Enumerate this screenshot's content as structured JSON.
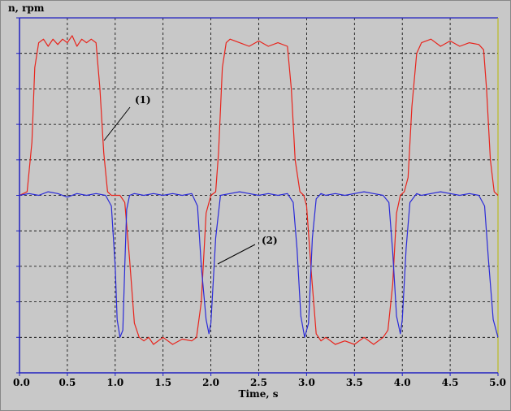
{
  "chart_data": {
    "type": "line",
    "xlabel": "Time, s",
    "ylabel": "n, rpm",
    "xlim": [
      0.0,
      5.0
    ],
    "ylim": [
      -5,
      5
    ],
    "x_ticks": [
      "0.0",
      "0.5",
      "1.0",
      "1.5",
      "2.0",
      "2.5",
      "3.0",
      "3.5",
      "4.0",
      "4.5",
      "5.0"
    ],
    "y_gridlines": 10,
    "grid": true,
    "colors": {
      "series_1": "#e8241c",
      "series_2": "#2a2ad8",
      "plot_bg": "#c8c8c8",
      "grid": "#000000",
      "axis": "#2020c0",
      "border": "#b8b800"
    },
    "annotations": [
      {
        "text": "(1)",
        "series": 0
      },
      {
        "text": "(2)",
        "series": 1
      }
    ],
    "series": [
      {
        "x": [
          0.0,
          0.08,
          0.13,
          0.16,
          0.2,
          0.25,
          0.3,
          0.35,
          0.4,
          0.45,
          0.5,
          0.55,
          0.6,
          0.65,
          0.7,
          0.75,
          0.8,
          0.84,
          0.88,
          0.92,
          0.96,
          1.0,
          1.05,
          1.1,
          1.15,
          1.2,
          1.25,
          1.3,
          1.35,
          1.4,
          1.5,
          1.6,
          1.7,
          1.8,
          1.85,
          1.9,
          1.95,
          2.0,
          2.05,
          2.08,
          2.12,
          2.16,
          2.2,
          2.3,
          2.4,
          2.5,
          2.6,
          2.7,
          2.8,
          2.84,
          2.88,
          2.93,
          2.97,
          3.0,
          3.05,
          3.1,
          3.15,
          3.2,
          3.3,
          3.4,
          3.5,
          3.6,
          3.7,
          3.8,
          3.85,
          3.9,
          3.94,
          3.98,
          4.02,
          4.06,
          4.1,
          4.15,
          4.2,
          4.3,
          4.4,
          4.5,
          4.6,
          4.7,
          4.8,
          4.85,
          4.88,
          4.92,
          4.96,
          5.0
        ],
        "y": [
          0.0,
          0.1,
          1.5,
          3.6,
          4.3,
          4.4,
          4.2,
          4.4,
          4.25,
          4.4,
          4.3,
          4.5,
          4.2,
          4.4,
          4.3,
          4.4,
          4.3,
          3.0,
          1.2,
          0.1,
          0.0,
          0.0,
          0.0,
          -0.2,
          -1.8,
          -3.6,
          -4.0,
          -4.1,
          -4.0,
          -4.2,
          -4.0,
          -4.2,
          -4.05,
          -4.1,
          -4.0,
          -3.0,
          -0.5,
          0.0,
          0.1,
          1.2,
          3.6,
          4.3,
          4.4,
          4.3,
          4.2,
          4.35,
          4.2,
          4.3,
          4.2,
          3.0,
          1.0,
          0.1,
          0.0,
          -0.3,
          -2.2,
          -3.9,
          -4.1,
          -4.0,
          -4.2,
          -4.1,
          -4.2,
          -4.0,
          -4.2,
          -4.0,
          -3.8,
          -2.5,
          -0.5,
          0.0,
          0.1,
          0.5,
          2.5,
          4.0,
          4.3,
          4.4,
          4.2,
          4.35,
          4.2,
          4.3,
          4.25,
          4.1,
          3.0,
          1.0,
          0.1,
          0.0
        ]
      },
      {
        "x": [
          0.0,
          0.1,
          0.2,
          0.3,
          0.4,
          0.5,
          0.6,
          0.7,
          0.8,
          0.9,
          0.96,
          1.0,
          1.02,
          1.05,
          1.08,
          1.1,
          1.12,
          1.15,
          1.2,
          1.3,
          1.4,
          1.5,
          1.6,
          1.7,
          1.8,
          1.86,
          1.9,
          1.95,
          1.98,
          2.0,
          2.05,
          2.1,
          2.2,
          2.3,
          2.4,
          2.5,
          2.6,
          2.7,
          2.8,
          2.86,
          2.9,
          2.94,
          2.98,
          3.02,
          3.06,
          3.1,
          3.15,
          3.2,
          3.3,
          3.4,
          3.5,
          3.6,
          3.7,
          3.8,
          3.86,
          3.9,
          3.94,
          3.98,
          4.0,
          4.04,
          4.08,
          4.15,
          4.2,
          4.3,
          4.4,
          4.5,
          4.6,
          4.7,
          4.8,
          4.86,
          4.9,
          4.95,
          5.0
        ],
        "y": [
          0.0,
          0.05,
          0.0,
          0.1,
          0.05,
          -0.05,
          0.05,
          0.0,
          0.05,
          0.0,
          -0.3,
          -2.0,
          -3.5,
          -4.0,
          -3.8,
          -2.0,
          -0.4,
          0.0,
          0.05,
          0.0,
          0.05,
          0.0,
          0.05,
          0.0,
          0.05,
          -0.3,
          -2.0,
          -3.5,
          -3.9,
          -3.6,
          -1.2,
          0.0,
          0.05,
          0.1,
          0.05,
          0.0,
          0.05,
          0.0,
          0.05,
          -0.2,
          -1.5,
          -3.4,
          -4.0,
          -3.6,
          -1.2,
          -0.1,
          0.05,
          0.0,
          0.05,
          0.0,
          0.05,
          0.1,
          0.05,
          0.0,
          -0.2,
          -1.6,
          -3.4,
          -3.9,
          -3.5,
          -1.5,
          -0.2,
          0.05,
          0.0,
          0.05,
          0.1,
          0.05,
          0.0,
          0.05,
          0.0,
          -0.3,
          -1.8,
          -3.5,
          -4.0
        ]
      }
    ]
  }
}
